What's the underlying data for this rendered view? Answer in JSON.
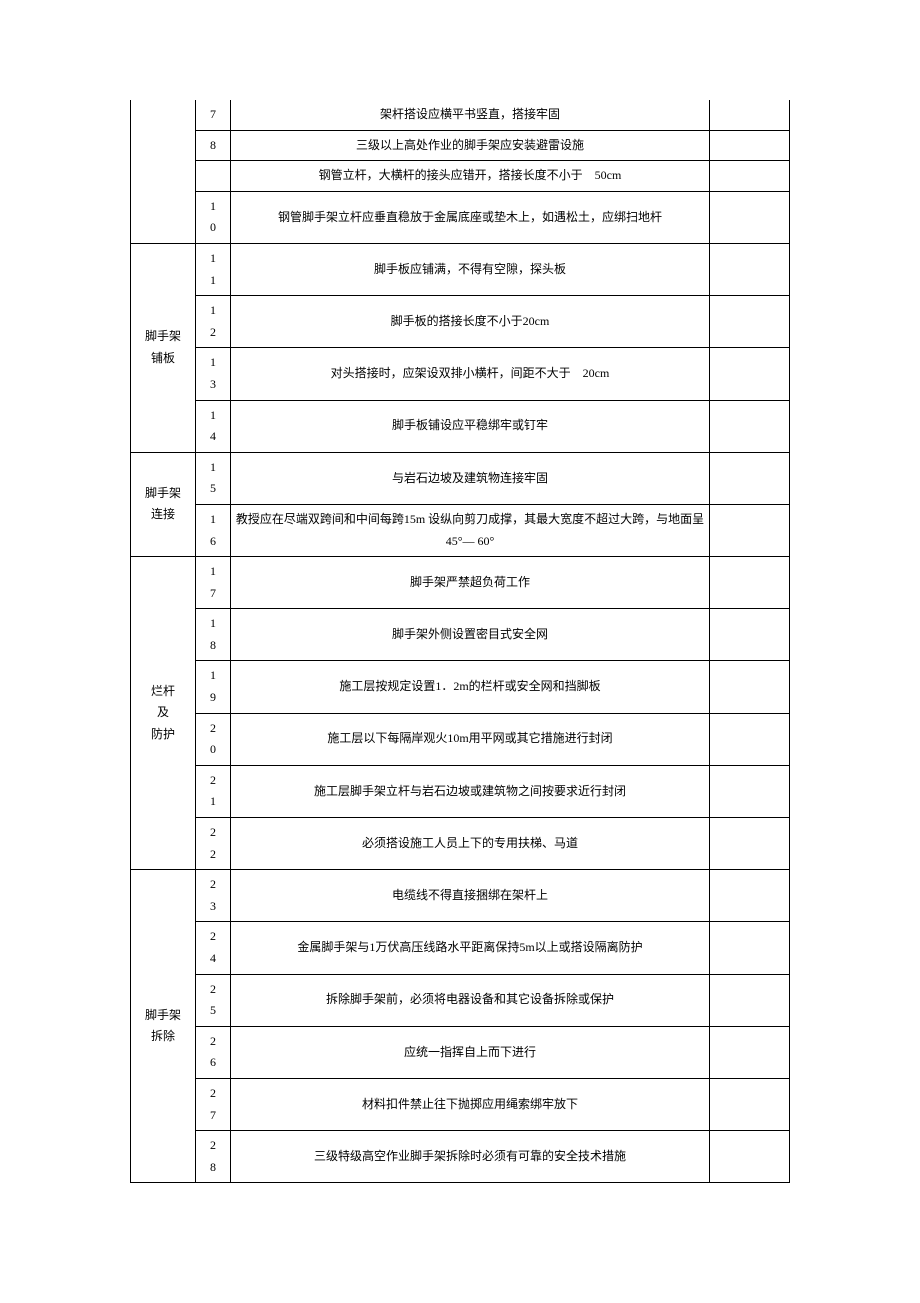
{
  "groups": [
    {
      "label": "",
      "label_no_top": true,
      "rows": [
        {
          "n": "7",
          "text": "架杆搭设应横平书竖直，搭接牢固"
        },
        {
          "n": "8",
          "text": "三级以上高处作业的脚手架应安装避雷设施"
        },
        {
          "n": "",
          "text": "钢管立杆，大横杆的接头应错开，搭接长度不小于　50cm"
        },
        {
          "n": "10",
          "text": "钢管脚手架立杆应垂直稳放于金属底座或垫木上，如遇松土，应绑扫地杆"
        }
      ]
    },
    {
      "label": "脚手架\n铺板",
      "rows": [
        {
          "n": "11",
          "text": "脚手板应铺满，不得有空隙，探头板"
        },
        {
          "n": "12",
          "text": "脚手板的搭接长度不小于20cm"
        },
        {
          "n": "13",
          "text": "对头搭接时，应架设双排小横杆，间距不大于　20cm"
        },
        {
          "n": "14",
          "text": "脚手板铺设应平稳绑牢或钉牢"
        }
      ]
    },
    {
      "label": "脚手架\n连接",
      "rows": [
        {
          "n": "15",
          "text": "与岩石边坡及建筑物连接牢固"
        },
        {
          "n": "16",
          "text": "教授应在尽端双跨间和中间每跨15m 设纵向剪刀成撑，其最大宽度不超过大跨，与地面呈45°— 60°"
        }
      ]
    },
    {
      "label": "烂杆\n及\n防护",
      "rows": [
        {
          "n": "17",
          "text": "脚手架严禁超负荷工作"
        },
        {
          "n": "18",
          "text": "脚手架外侧设置密目式安全网"
        },
        {
          "n": "19",
          "text": "施工层按规定设置1．2m的栏杆或安全网和挡脚板"
        },
        {
          "n": "20",
          "text": "施工层以下每隔岸观火10m用平网或其它措施进行封闭"
        },
        {
          "n": "21",
          "text": "施工层脚手架立杆与岩石边坡或建筑物之间按要求近行封闭"
        },
        {
          "n": "22",
          "text": "必须搭设施工人员上下的专用扶梯、马道"
        }
      ]
    },
    {
      "label": "脚手架\n拆除",
      "rows": [
        {
          "n": "23",
          "text": "电缆线不得直接捆绑在架杆上"
        },
        {
          "n": "24",
          "text": "金属脚手架与1万伏高压线路水平距离保持5m以上或搭设隔离防护"
        },
        {
          "n": "25",
          "text": "拆除脚手架前，必须将电器设备和其它设备拆除或保护"
        },
        {
          "n": "26",
          "text": "应统一指挥自上而下进行"
        },
        {
          "n": "27",
          "text": "材料扣件禁止往下抛掷应用绳索绑牢放下"
        },
        {
          "n": "28",
          "text": "三级特级高空作业脚手架拆除时必须有可靠的安全技术措施"
        }
      ]
    }
  ]
}
